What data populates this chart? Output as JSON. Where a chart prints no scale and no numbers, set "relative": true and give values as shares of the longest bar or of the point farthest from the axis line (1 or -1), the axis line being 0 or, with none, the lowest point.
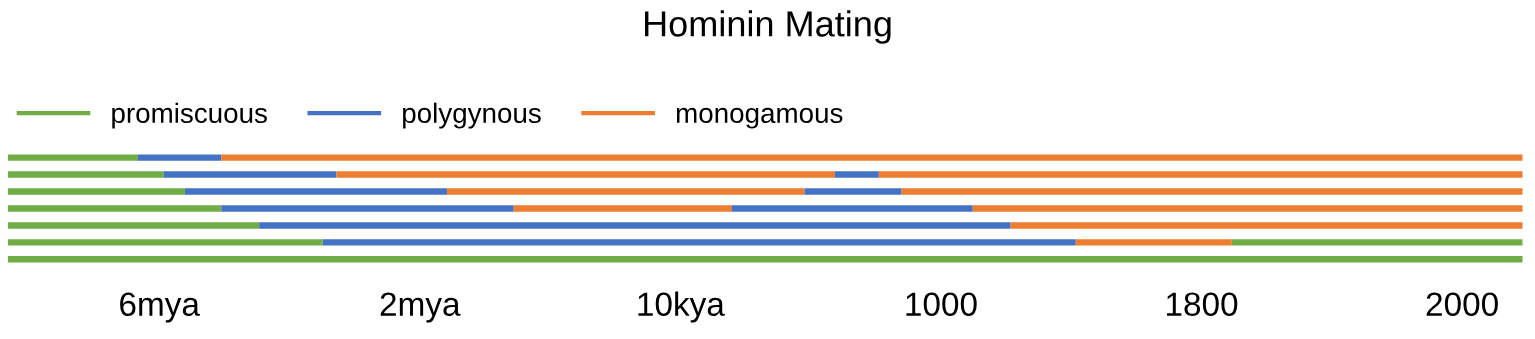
{
  "chart_data": {
    "type": "bar",
    "orientation": "horizontal",
    "stacked": true,
    "relative": true,
    "title": "Hominin Mating",
    "categories": [
      null,
      null,
      null,
      null,
      null,
      null,
      null
    ],
    "series": [
      {
        "name": "promiscuous",
        "color": "#70ad47",
        "values": [
          0.086,
          0.103,
          0.117,
          0.141,
          0.166,
          0.208,
          1
        ]
      },
      {
        "name": "polygynous",
        "color": "#4472c4",
        "values": [
          0.055,
          0.114,
          0.173,
          0.193,
          0.496,
          0.497,
          null
        ]
      },
      {
        "name": "monogamous",
        "color": "#ed7d31",
        "values": [
          0.859,
          0.329,
          0.236,
          0.144,
          0.338,
          0.103,
          null
        ]
      },
      {
        "color": "#4472c4",
        "values": [
          null,
          0.029,
          0.064,
          0.159,
          null,
          null,
          null
        ]
      },
      {
        "color": "#ed7d31",
        "values": [
          null,
          0.425,
          0.41,
          0.363,
          null,
          null,
          null
        ]
      },
      {
        "color": "#70ad47",
        "values": [
          null,
          null,
          null,
          null,
          null,
          0.192,
          null
        ]
      }
    ],
    "annotations": [
      "6mya",
      "2mya",
      "10kya",
      "1000",
      "1800",
      "2000"
    ],
    "legend": "top left"
  }
}
